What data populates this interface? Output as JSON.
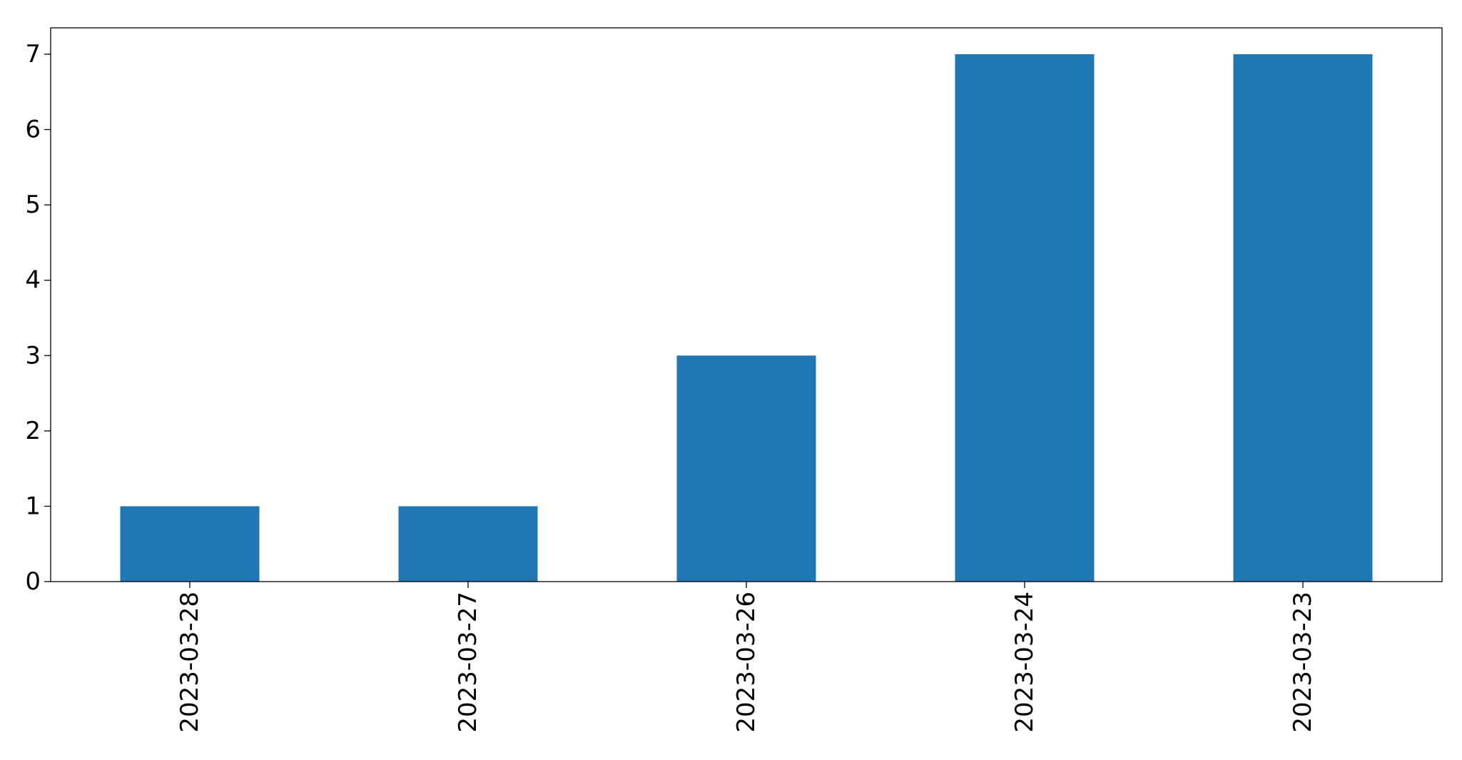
{
  "chart_data": {
    "type": "bar",
    "title": "",
    "xlabel": "",
    "ylabel": "",
    "categories": [
      "2023-03-28",
      "2023-03-27",
      "2023-03-26",
      "2023-03-24",
      "2023-03-23"
    ],
    "values": [
      1,
      1,
      3,
      7,
      7
    ],
    "ylim": [
      0,
      7.35
    ],
    "yticks": [
      0,
      1,
      2,
      3,
      4,
      5,
      6,
      7
    ],
    "bar_color": "#1f77b4",
    "grid": false,
    "legend": "none"
  }
}
